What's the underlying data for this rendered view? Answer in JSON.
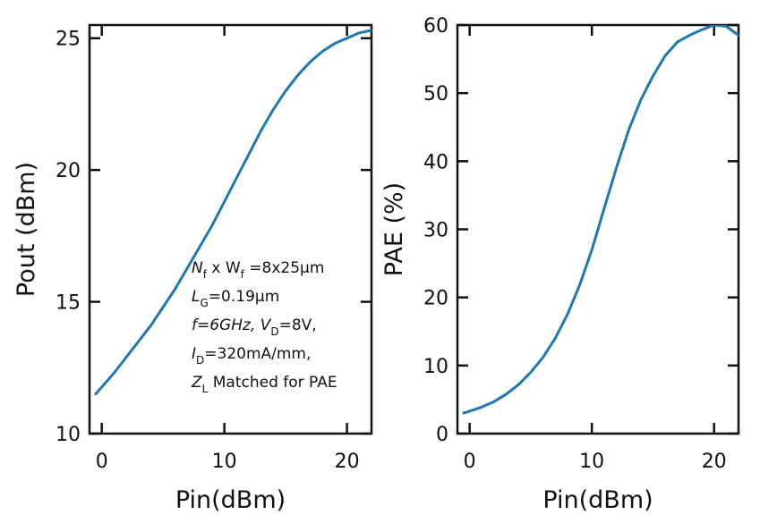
{
  "chart_data": [
    {
      "type": "line",
      "xlabel": "Pin(dBm)",
      "ylabel": "Pout (dBm)",
      "xlim": [
        -1,
        22
      ],
      "ylim": [
        10,
        25.5
      ],
      "xticks": [
        0,
        10,
        20
      ],
      "yticks": [
        10,
        15,
        20,
        25
      ],
      "color": "#1f77b4",
      "annotations": [
        {
          "parts": [
            [
              "N",
              "f",
              " x W",
              "f",
              " =8x25μm"
            ]
          ]
        },
        {
          "parts": [
            [
              "L",
              "G",
              "=0.19μm"
            ]
          ]
        },
        {
          "parts": [
            [
              "f=6GHz,   V",
              "D",
              "=8V,"
            ]
          ]
        },
        {
          "parts": [
            [
              "I",
              "D",
              "=320mA/mm,"
            ]
          ]
        },
        {
          "parts": [
            [
              "Z",
              "L",
              " Matched for PAE"
            ]
          ]
        }
      ],
      "series": [
        {
          "x": [
            -0.5,
            1,
            2,
            3,
            4,
            5,
            6,
            7,
            8,
            9,
            10,
            11,
            12,
            13,
            14,
            15,
            16,
            17,
            18,
            19,
            20,
            21,
            22
          ],
          "y": [
            11.5,
            12.3,
            12.9,
            13.5,
            14.1,
            14.8,
            15.5,
            16.3,
            17.1,
            17.9,
            18.8,
            19.7,
            20.6,
            21.5,
            22.3,
            23.0,
            23.6,
            24.1,
            24.5,
            24.8,
            25.0,
            25.2,
            25.3
          ]
        }
      ]
    },
    {
      "type": "line",
      "xlabel": "Pin(dBm)",
      "ylabel": "PAE (%)",
      "xlim": [
        -1,
        22
      ],
      "ylim": [
        0,
        60
      ],
      "xticks": [
        0,
        10,
        20
      ],
      "yticks": [
        0,
        10,
        20,
        30,
        40,
        50,
        60
      ],
      "color": "#1f77b4",
      "series": [
        {
          "x": [
            -0.5,
            0,
            1,
            2,
            3,
            4,
            5,
            6,
            7,
            8,
            9,
            10,
            11,
            12,
            13,
            14,
            15,
            16,
            17,
            18,
            19,
            20,
            21,
            22
          ],
          "y": [
            3.0,
            3.3,
            3.9,
            4.7,
            5.8,
            7.2,
            9.0,
            11.2,
            14.0,
            17.5,
            21.8,
            27.0,
            33.0,
            39.0,
            44.5,
            49.0,
            52.5,
            55.5,
            57.5,
            58.5,
            59.3,
            60.0,
            59.8,
            58.5
          ]
        }
      ]
    }
  ]
}
